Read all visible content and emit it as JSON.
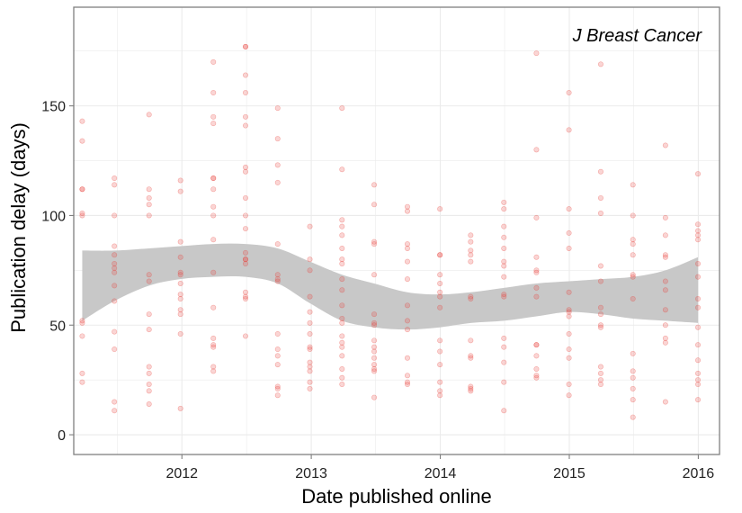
{
  "chart_data": {
    "type": "scatter",
    "xlabel": "Date published online",
    "ylabel": "Publication delay (days)",
    "annotation": "J Breast Cancer",
    "x_ticks": [
      "2012",
      "2013",
      "2014",
      "2015",
      "2016"
    ],
    "y_ticks": [
      0,
      50,
      100,
      150
    ],
    "xlim": [
      "2011-03-01",
      "2016-03-01"
    ],
    "ylim": [
      -9,
      195
    ],
    "grid": true,
    "legend": "none",
    "colors": {
      "points": "#e8403a",
      "band": "#c8c8c8",
      "grid": "#ebebeb",
      "panel_border": "#7f7f7f"
    },
    "points": [
      {
        "x": "2011-03-25",
        "y": 143
      },
      {
        "x": "2011-03-25",
        "y": 134
      },
      {
        "x": "2011-03-25",
        "y": 112
      },
      {
        "x": "2011-03-25",
        "y": 112
      },
      {
        "x": "2011-03-25",
        "y": 101
      },
      {
        "x": "2011-03-25",
        "y": 100
      },
      {
        "x": "2011-03-25",
        "y": 52
      },
      {
        "x": "2011-03-25",
        "y": 51
      },
      {
        "x": "2011-03-25",
        "y": 45
      },
      {
        "x": "2011-03-25",
        "y": 28
      },
      {
        "x": "2011-03-25",
        "y": 24
      },
      {
        "x": "2011-06-24",
        "y": 117
      },
      {
        "x": "2011-06-24",
        "y": 114
      },
      {
        "x": "2011-06-24",
        "y": 100
      },
      {
        "x": "2011-06-24",
        "y": 86
      },
      {
        "x": "2011-06-24",
        "y": 82
      },
      {
        "x": "2011-06-24",
        "y": 78
      },
      {
        "x": "2011-06-24",
        "y": 76
      },
      {
        "x": "2011-06-24",
        "y": 74
      },
      {
        "x": "2011-06-24",
        "y": 68
      },
      {
        "x": "2011-06-24",
        "y": 61
      },
      {
        "x": "2011-06-24",
        "y": 47
      },
      {
        "x": "2011-06-24",
        "y": 39
      },
      {
        "x": "2011-06-24",
        "y": 15
      },
      {
        "x": "2011-06-24",
        "y": 11
      },
      {
        "x": "2011-09-30",
        "y": 146
      },
      {
        "x": "2011-09-30",
        "y": 112
      },
      {
        "x": "2011-09-30",
        "y": 108
      },
      {
        "x": "2011-09-30",
        "y": 105
      },
      {
        "x": "2011-09-30",
        "y": 100
      },
      {
        "x": "2011-09-30",
        "y": 73
      },
      {
        "x": "2011-09-30",
        "y": 70
      },
      {
        "x": "2011-09-30",
        "y": 55
      },
      {
        "x": "2011-09-30",
        "y": 48
      },
      {
        "x": "2011-09-30",
        "y": 31
      },
      {
        "x": "2011-09-30",
        "y": 28
      },
      {
        "x": "2011-09-30",
        "y": 23
      },
      {
        "x": "2011-09-30",
        "y": 20
      },
      {
        "x": "2011-09-30",
        "y": 14
      },
      {
        "x": "2011-12-28",
        "y": 116
      },
      {
        "x": "2011-12-28",
        "y": 111
      },
      {
        "x": "2011-12-28",
        "y": 88
      },
      {
        "x": "2011-12-28",
        "y": 81
      },
      {
        "x": "2011-12-28",
        "y": 74
      },
      {
        "x": "2011-12-28",
        "y": 73
      },
      {
        "x": "2011-12-28",
        "y": 69
      },
      {
        "x": "2011-12-28",
        "y": 64
      },
      {
        "x": "2011-12-28",
        "y": 62
      },
      {
        "x": "2011-12-28",
        "y": 57
      },
      {
        "x": "2011-12-28",
        "y": 55
      },
      {
        "x": "2011-12-28",
        "y": 46
      },
      {
        "x": "2011-12-28",
        "y": 12
      },
      {
        "x": "2012-03-30",
        "y": 170
      },
      {
        "x": "2012-03-30",
        "y": 156
      },
      {
        "x": "2012-03-30",
        "y": 145
      },
      {
        "x": "2012-03-30",
        "y": 142
      },
      {
        "x": "2012-03-30",
        "y": 117
      },
      {
        "x": "2012-03-30",
        "y": 117
      },
      {
        "x": "2012-03-30",
        "y": 112
      },
      {
        "x": "2012-03-30",
        "y": 104
      },
      {
        "x": "2012-03-30",
        "y": 100
      },
      {
        "x": "2012-03-30",
        "y": 89
      },
      {
        "x": "2012-03-30",
        "y": 74
      },
      {
        "x": "2012-03-30",
        "y": 58
      },
      {
        "x": "2012-03-30",
        "y": 44
      },
      {
        "x": "2012-03-30",
        "y": 41
      },
      {
        "x": "2012-03-30",
        "y": 40
      },
      {
        "x": "2012-03-30",
        "y": 31
      },
      {
        "x": "2012-03-30",
        "y": 29
      },
      {
        "x": "2012-06-29",
        "y": 177
      },
      {
        "x": "2012-06-29",
        "y": 177
      },
      {
        "x": "2012-06-29",
        "y": 164
      },
      {
        "x": "2012-06-29",
        "y": 156
      },
      {
        "x": "2012-06-29",
        "y": 145
      },
      {
        "x": "2012-06-29",
        "y": 141
      },
      {
        "x": "2012-06-29",
        "y": 122
      },
      {
        "x": "2012-06-29",
        "y": 120
      },
      {
        "x": "2012-06-29",
        "y": 108
      },
      {
        "x": "2012-06-29",
        "y": 100
      },
      {
        "x": "2012-06-29",
        "y": 94
      },
      {
        "x": "2012-06-29",
        "y": 83
      },
      {
        "x": "2012-06-29",
        "y": 80
      },
      {
        "x": "2012-06-29",
        "y": 80
      },
      {
        "x": "2012-06-29",
        "y": 78
      },
      {
        "x": "2012-06-29",
        "y": 65
      },
      {
        "x": "2012-06-29",
        "y": 63
      },
      {
        "x": "2012-06-29",
        "y": 62
      },
      {
        "x": "2012-06-29",
        "y": 45
      },
      {
        "x": "2012-09-28",
        "y": 149
      },
      {
        "x": "2012-09-28",
        "y": 135
      },
      {
        "x": "2012-09-28",
        "y": 123
      },
      {
        "x": "2012-09-28",
        "y": 115
      },
      {
        "x": "2012-09-28",
        "y": 87
      },
      {
        "x": "2012-09-28",
        "y": 73
      },
      {
        "x": "2012-09-28",
        "y": 71
      },
      {
        "x": "2012-09-28",
        "y": 70
      },
      {
        "x": "2012-09-28",
        "y": 46
      },
      {
        "x": "2012-09-28",
        "y": 39
      },
      {
        "x": "2012-09-28",
        "y": 36
      },
      {
        "x": "2012-09-28",
        "y": 32
      },
      {
        "x": "2012-09-28",
        "y": 22
      },
      {
        "x": "2012-09-28",
        "y": 21
      },
      {
        "x": "2012-09-28",
        "y": 18
      },
      {
        "x": "2012-12-28",
        "y": 95
      },
      {
        "x": "2012-12-28",
        "y": 80
      },
      {
        "x": "2012-12-28",
        "y": 75
      },
      {
        "x": "2012-12-28",
        "y": 63
      },
      {
        "x": "2012-12-28",
        "y": 56
      },
      {
        "x": "2012-12-28",
        "y": 51
      },
      {
        "x": "2012-12-28",
        "y": 46
      },
      {
        "x": "2012-12-28",
        "y": 40
      },
      {
        "x": "2012-12-28",
        "y": 39
      },
      {
        "x": "2012-12-28",
        "y": 33
      },
      {
        "x": "2012-12-28",
        "y": 31
      },
      {
        "x": "2012-12-28",
        "y": 29
      },
      {
        "x": "2012-12-28",
        "y": 24
      },
      {
        "x": "2012-12-28",
        "y": 21
      },
      {
        "x": "2013-03-29",
        "y": 149
      },
      {
        "x": "2013-03-29",
        "y": 121
      },
      {
        "x": "2013-03-29",
        "y": 98
      },
      {
        "x": "2013-03-29",
        "y": 95
      },
      {
        "x": "2013-03-29",
        "y": 91
      },
      {
        "x": "2013-03-29",
        "y": 85
      },
      {
        "x": "2013-03-29",
        "y": 80
      },
      {
        "x": "2013-03-29",
        "y": 78
      },
      {
        "x": "2013-03-29",
        "y": 71
      },
      {
        "x": "2013-03-29",
        "y": 66
      },
      {
        "x": "2013-03-29",
        "y": 59
      },
      {
        "x": "2013-03-29",
        "y": 53
      },
      {
        "x": "2013-03-29",
        "y": 51
      },
      {
        "x": "2013-03-29",
        "y": 45
      },
      {
        "x": "2013-03-29",
        "y": 42
      },
      {
        "x": "2013-03-29",
        "y": 40
      },
      {
        "x": "2013-03-29",
        "y": 36
      },
      {
        "x": "2013-03-29",
        "y": 30
      },
      {
        "x": "2013-03-29",
        "y": 26
      },
      {
        "x": "2013-03-29",
        "y": 23
      },
      {
        "x": "2013-06-28",
        "y": 114
      },
      {
        "x": "2013-06-28",
        "y": 105
      },
      {
        "x": "2013-06-28",
        "y": 88
      },
      {
        "x": "2013-06-28",
        "y": 87
      },
      {
        "x": "2013-06-28",
        "y": 73
      },
      {
        "x": "2013-06-28",
        "y": 55
      },
      {
        "x": "2013-06-28",
        "y": 51
      },
      {
        "x": "2013-06-28",
        "y": 50
      },
      {
        "x": "2013-06-28",
        "y": 43
      },
      {
        "x": "2013-06-28",
        "y": 40
      },
      {
        "x": "2013-06-28",
        "y": 38
      },
      {
        "x": "2013-06-28",
        "y": 35
      },
      {
        "x": "2013-06-28",
        "y": 32
      },
      {
        "x": "2013-06-28",
        "y": 30
      },
      {
        "x": "2013-06-28",
        "y": 29
      },
      {
        "x": "2013-06-28",
        "y": 17
      },
      {
        "x": "2013-09-30",
        "y": 104
      },
      {
        "x": "2013-09-30",
        "y": 102
      },
      {
        "x": "2013-09-30",
        "y": 87
      },
      {
        "x": "2013-09-30",
        "y": 85
      },
      {
        "x": "2013-09-30",
        "y": 79
      },
      {
        "x": "2013-09-30",
        "y": 71
      },
      {
        "x": "2013-09-30",
        "y": 59
      },
      {
        "x": "2013-09-30",
        "y": 52
      },
      {
        "x": "2013-09-30",
        "y": 48
      },
      {
        "x": "2013-09-30",
        "y": 35
      },
      {
        "x": "2013-09-30",
        "y": 27
      },
      {
        "x": "2013-09-30",
        "y": 24
      },
      {
        "x": "2013-09-30",
        "y": 23
      },
      {
        "x": "2013-12-31",
        "y": 103
      },
      {
        "x": "2013-12-31",
        "y": 82
      },
      {
        "x": "2013-12-31",
        "y": 82
      },
      {
        "x": "2013-12-31",
        "y": 73
      },
      {
        "x": "2013-12-31",
        "y": 69
      },
      {
        "x": "2013-12-31",
        "y": 65
      },
      {
        "x": "2013-12-31",
        "y": 63
      },
      {
        "x": "2013-12-31",
        "y": 58
      },
      {
        "x": "2013-12-31",
        "y": 43
      },
      {
        "x": "2013-12-31",
        "y": 38
      },
      {
        "x": "2013-12-31",
        "y": 32
      },
      {
        "x": "2013-12-31",
        "y": 24
      },
      {
        "x": "2013-12-31",
        "y": 20
      },
      {
        "x": "2013-12-31",
        "y": 18
      },
      {
        "x": "2014-03-28",
        "y": 91
      },
      {
        "x": "2014-03-28",
        "y": 88
      },
      {
        "x": "2014-03-28",
        "y": 84
      },
      {
        "x": "2014-03-28",
        "y": 82
      },
      {
        "x": "2014-03-28",
        "y": 79
      },
      {
        "x": "2014-03-28",
        "y": 63
      },
      {
        "x": "2014-03-28",
        "y": 62
      },
      {
        "x": "2014-03-28",
        "y": 43
      },
      {
        "x": "2014-03-28",
        "y": 36
      },
      {
        "x": "2014-03-28",
        "y": 35
      },
      {
        "x": "2014-03-28",
        "y": 22
      },
      {
        "x": "2014-03-28",
        "y": 21
      },
      {
        "x": "2014-03-28",
        "y": 20
      },
      {
        "x": "2014-06-30",
        "y": 106
      },
      {
        "x": "2014-06-30",
        "y": 103
      },
      {
        "x": "2014-06-30",
        "y": 95
      },
      {
        "x": "2014-06-30",
        "y": 90
      },
      {
        "x": "2014-06-30",
        "y": 85
      },
      {
        "x": "2014-06-30",
        "y": 79
      },
      {
        "x": "2014-06-30",
        "y": 77
      },
      {
        "x": "2014-06-30",
        "y": 72
      },
      {
        "x": "2014-06-30",
        "y": 64
      },
      {
        "x": "2014-06-30",
        "y": 63
      },
      {
        "x": "2014-06-30",
        "y": 44
      },
      {
        "x": "2014-06-30",
        "y": 40
      },
      {
        "x": "2014-06-30",
        "y": 33
      },
      {
        "x": "2014-06-30",
        "y": 24
      },
      {
        "x": "2014-06-30",
        "y": 11
      },
      {
        "x": "2014-09-30",
        "y": 174
      },
      {
        "x": "2014-09-30",
        "y": 130
      },
      {
        "x": "2014-09-30",
        "y": 99
      },
      {
        "x": "2014-09-30",
        "y": 81
      },
      {
        "x": "2014-09-30",
        "y": 75
      },
      {
        "x": "2014-09-30",
        "y": 74
      },
      {
        "x": "2014-09-30",
        "y": 67
      },
      {
        "x": "2014-09-30",
        "y": 63
      },
      {
        "x": "2014-09-30",
        "y": 41
      },
      {
        "x": "2014-09-30",
        "y": 41
      },
      {
        "x": "2014-09-30",
        "y": 36
      },
      {
        "x": "2014-09-30",
        "y": 30
      },
      {
        "x": "2014-09-30",
        "y": 27
      },
      {
        "x": "2014-09-30",
        "y": 26
      },
      {
        "x": "2014-12-31",
        "y": 156
      },
      {
        "x": "2014-12-31",
        "y": 139
      },
      {
        "x": "2014-12-31",
        "y": 103
      },
      {
        "x": "2014-12-31",
        "y": 92
      },
      {
        "x": "2014-12-31",
        "y": 85
      },
      {
        "x": "2014-12-31",
        "y": 65
      },
      {
        "x": "2014-12-31",
        "y": 57
      },
      {
        "x": "2014-12-31",
        "y": 56
      },
      {
        "x": "2014-12-31",
        "y": 54
      },
      {
        "x": "2014-12-31",
        "y": 46
      },
      {
        "x": "2014-12-31",
        "y": 39
      },
      {
        "x": "2014-12-31",
        "y": 35
      },
      {
        "x": "2014-12-31",
        "y": 23
      },
      {
        "x": "2014-12-31",
        "y": 18
      },
      {
        "x": "2015-03-31",
        "y": 169
      },
      {
        "x": "2015-03-31",
        "y": 120
      },
      {
        "x": "2015-03-31",
        "y": 108
      },
      {
        "x": "2015-03-31",
        "y": 101
      },
      {
        "x": "2015-03-31",
        "y": 77
      },
      {
        "x": "2015-03-31",
        "y": 70
      },
      {
        "x": "2015-03-31",
        "y": 58
      },
      {
        "x": "2015-03-31",
        "y": 55
      },
      {
        "x": "2015-03-31",
        "y": 50
      },
      {
        "x": "2015-03-31",
        "y": 49
      },
      {
        "x": "2015-03-31",
        "y": 31
      },
      {
        "x": "2015-03-31",
        "y": 28
      },
      {
        "x": "2015-03-31",
        "y": 25
      },
      {
        "x": "2015-03-31",
        "y": 23
      },
      {
        "x": "2015-06-30",
        "y": 114
      },
      {
        "x": "2015-06-30",
        "y": 100
      },
      {
        "x": "2015-06-30",
        "y": 89
      },
      {
        "x": "2015-06-30",
        "y": 87
      },
      {
        "x": "2015-06-30",
        "y": 82
      },
      {
        "x": "2015-06-30",
        "y": 73
      },
      {
        "x": "2015-06-30",
        "y": 72
      },
      {
        "x": "2015-06-30",
        "y": 62
      },
      {
        "x": "2015-06-30",
        "y": 37
      },
      {
        "x": "2015-06-30",
        "y": 29
      },
      {
        "x": "2015-06-30",
        "y": 26
      },
      {
        "x": "2015-06-30",
        "y": 21
      },
      {
        "x": "2015-06-30",
        "y": 16
      },
      {
        "x": "2015-06-30",
        "y": 8
      },
      {
        "x": "2015-09-30",
        "y": 132
      },
      {
        "x": "2015-09-30",
        "y": 99
      },
      {
        "x": "2015-09-30",
        "y": 91
      },
      {
        "x": "2015-09-30",
        "y": 82
      },
      {
        "x": "2015-09-30",
        "y": 81
      },
      {
        "x": "2015-09-30",
        "y": 70
      },
      {
        "x": "2015-09-30",
        "y": 66
      },
      {
        "x": "2015-09-30",
        "y": 57
      },
      {
        "x": "2015-09-30",
        "y": 50
      },
      {
        "x": "2015-09-30",
        "y": 44
      },
      {
        "x": "2015-09-30",
        "y": 42
      },
      {
        "x": "2015-09-30",
        "y": 15
      },
      {
        "x": "2015-12-31",
        "y": 119
      },
      {
        "x": "2015-12-31",
        "y": 96
      },
      {
        "x": "2015-12-31",
        "y": 93
      },
      {
        "x": "2015-12-31",
        "y": 91
      },
      {
        "x": "2015-12-31",
        "y": 89
      },
      {
        "x": "2015-12-31",
        "y": 78
      },
      {
        "x": "2015-12-31",
        "y": 72
      },
      {
        "x": "2015-12-31",
        "y": 62
      },
      {
        "x": "2015-12-31",
        "y": 58
      },
      {
        "x": "2015-12-31",
        "y": 49
      },
      {
        "x": "2015-12-31",
        "y": 41
      },
      {
        "x": "2015-12-31",
        "y": 34
      },
      {
        "x": "2015-12-31",
        "y": 28
      },
      {
        "x": "2015-12-31",
        "y": 25
      },
      {
        "x": "2015-12-31",
        "y": 23
      },
      {
        "x": "2015-12-31",
        "y": 16
      }
    ],
    "smooth_band": [
      {
        "x": "2011-03-25",
        "lower": 52,
        "upper": 84
      },
      {
        "x": "2011-06-24",
        "lower": 61,
        "upper": 84
      },
      {
        "x": "2011-09-30",
        "lower": 68,
        "upper": 85
      },
      {
        "x": "2011-12-28",
        "lower": 71,
        "upper": 86
      },
      {
        "x": "2012-03-30",
        "lower": 72,
        "upper": 87
      },
      {
        "x": "2012-06-29",
        "lower": 72,
        "upper": 87
      },
      {
        "x": "2012-09-28",
        "lower": 69,
        "upper": 85
      },
      {
        "x": "2012-12-28",
        "lower": 60,
        "upper": 79
      },
      {
        "x": "2013-03-29",
        "lower": 52,
        "upper": 73
      },
      {
        "x": "2013-06-28",
        "lower": 49,
        "upper": 69
      },
      {
        "x": "2013-09-30",
        "lower": 48,
        "upper": 65
      },
      {
        "x": "2013-12-31",
        "lower": 49,
        "upper": 64
      },
      {
        "x": "2014-03-28",
        "lower": 51,
        "upper": 65
      },
      {
        "x": "2014-06-30",
        "lower": 52,
        "upper": 67
      },
      {
        "x": "2014-09-30",
        "lower": 54,
        "upper": 69
      },
      {
        "x": "2014-12-31",
        "lower": 56,
        "upper": 70
      },
      {
        "x": "2015-03-31",
        "lower": 55,
        "upper": 71
      },
      {
        "x": "2015-06-30",
        "lower": 53,
        "upper": 72
      },
      {
        "x": "2015-09-30",
        "lower": 52,
        "upper": 75
      },
      {
        "x": "2015-12-31",
        "lower": 51,
        "upper": 81
      }
    ]
  }
}
